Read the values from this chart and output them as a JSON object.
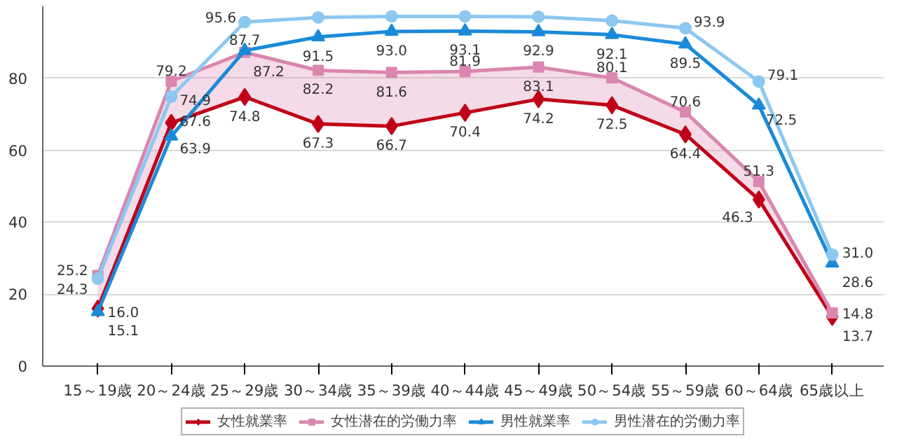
{
  "chart_data": {
    "type": "line",
    "categories": [
      "15～19歳",
      "20～24歳",
      "25～29歳",
      "30～34歳",
      "35～39歳",
      "40～44歳",
      "45～49歳",
      "50～54歳",
      "55～59歳",
      "60～64歳",
      "65歳以上"
    ],
    "series": [
      {
        "name": "女性就業率",
        "color": "#c00018",
        "marker": "diamond",
        "values": [
          16.0,
          67.6,
          74.8,
          67.3,
          66.7,
          70.4,
          74.2,
          72.5,
          64.4,
          46.3,
          13.7
        ],
        "value_labels": [
          "16.0",
          "67.6",
          "74.8",
          "67.3",
          "66.7",
          "70.4",
          "74.2",
          "72.5",
          "64.4",
          "46.3",
          "13.7"
        ]
      },
      {
        "name": "女性潜在的労働力率",
        "color": "#d987b0",
        "marker": "square",
        "values": [
          25.2,
          79.2,
          87.2,
          82.2,
          81.6,
          81.9,
          83.1,
          80.1,
          70.6,
          51.3,
          14.8
        ],
        "value_labels": [
          "25.2",
          "79.2",
          "87.2",
          "82.2",
          "81.6",
          "81.9",
          "83.1",
          "80.1",
          "70.6",
          "51.3",
          "14.8"
        ],
        "lower": [
          16.0,
          67.6,
          74.8,
          67.3,
          66.7,
          70.4,
          74.2,
          72.5,
          64.4,
          46.3,
          13.7
        ],
        "upper": [
          25.2,
          79.2,
          87.2,
          82.2,
          81.6,
          81.9,
          83.1,
          80.1,
          70.6,
          51.3,
          14.8
        ]
      },
      {
        "name": "男性就業率",
        "color": "#1a8ad8",
        "marker": "triangle",
        "values": [
          15.1,
          63.9,
          87.7,
          91.5,
          93.0,
          93.1,
          92.9,
          92.1,
          89.5,
          72.5,
          28.6
        ],
        "value_labels": [
          "15.1",
          "63.9",
          "87.7",
          "91.5",
          "93.0",
          "93.1",
          "92.9",
          "92.1",
          "89.5",
          "72.5",
          "28.6"
        ]
      },
      {
        "name": "男性潜在的労働力率",
        "color": "#8cc8f0",
        "marker": "circle",
        "values": [
          24.3,
          74.9,
          95.6,
          96.9,
          97.2,
          97.2,
          97.1,
          96.0,
          93.9,
          79.1,
          31.0
        ],
        "value_labels": [
          "24.3",
          "74.9",
          "95.6",
          null,
          null,
          null,
          null,
          null,
          "93.9",
          "79.1",
          "31.0"
        ]
      }
    ],
    "ylim": [
      0,
      100
    ],
    "yticks": [
      0,
      20,
      40,
      60,
      80
    ],
    "grid": "y",
    "legend": "bottom",
    "line_style": "solid"
  }
}
